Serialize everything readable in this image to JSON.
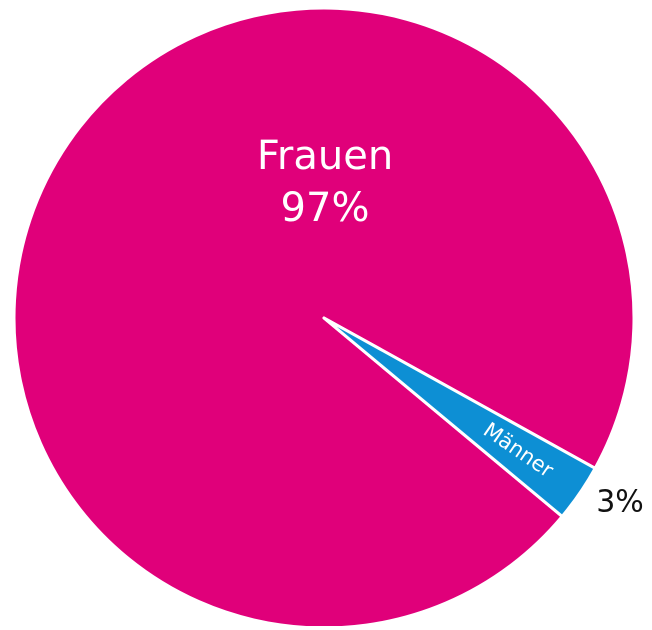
{
  "chart_data": {
    "type": "pie",
    "categories": [
      "Frauen",
      "Männer"
    ],
    "values": [
      97,
      3
    ],
    "value_labels": [
      "97%",
      "3%"
    ],
    "colors": [
      "#e0007a",
      "#0d8fd4"
    ]
  }
}
